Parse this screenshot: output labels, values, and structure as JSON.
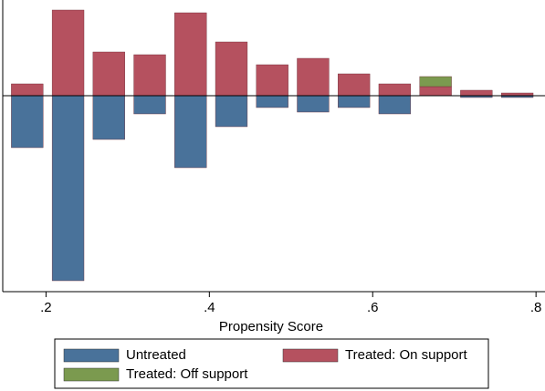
{
  "chart_data": {
    "type": "bar",
    "x_label": "Propensity Score",
    "x": [
      0.177,
      0.227,
      0.277,
      0.327,
      0.377,
      0.427,
      0.477,
      0.527,
      0.577,
      0.627,
      0.677,
      0.727,
      0.777
    ],
    "bar_width": 0.039,
    "series": [
      {
        "name": "Untreated",
        "color": "#49729a",
        "values": [
          -5.7,
          -20.3,
          -4.8,
          -2.0,
          -7.9,
          -3.4,
          -1.3,
          -1.8,
          -1.3,
          -2.0,
          0,
          -0.2,
          -0.2
        ]
      },
      {
        "name": "Treated: On support",
        "color": "#b5515f",
        "values": [
          1.3,
          9.4,
          4.8,
          4.5,
          9.1,
          5.9,
          3.4,
          4.1,
          2.4,
          1.3,
          1.0,
          0.6,
          0.3
        ]
      },
      {
        "name": "Treated: Off support",
        "color": "#7b9a4f",
        "values": [
          0,
          0,
          0,
          0,
          0,
          0,
          0,
          0,
          0,
          0,
          1.1,
          0,
          0
        ]
      }
    ],
    "xlim": [
      0.147,
      0.811
    ],
    "ylim": [
      -21.5,
      10.5
    ],
    "xticks": [
      {
        "value": 0.2,
        "label": ".2"
      },
      {
        "value": 0.4,
        "label": ".4"
      },
      {
        "value": 0.6,
        "label": ".6"
      },
      {
        "value": 0.8,
        "label": ".8"
      }
    ]
  }
}
